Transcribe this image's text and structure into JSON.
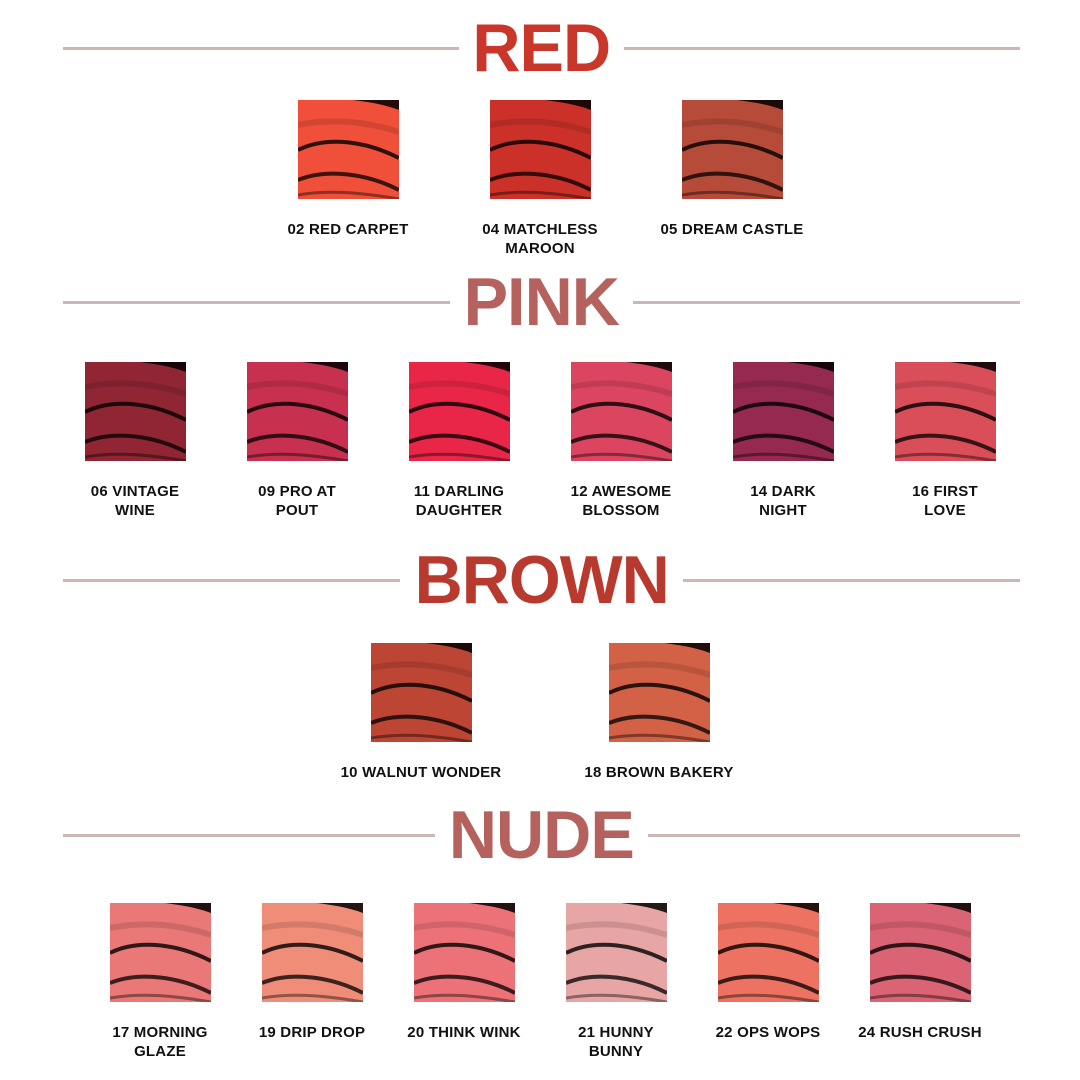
{
  "sections": [
    {
      "title": "RED",
      "color": "#c8372a",
      "items": [
        {
          "label": "02 RED CARPET",
          "color": "#f0452e"
        },
        {
          "label": "04 MATCHLESS\nMAROON",
          "color": "#c8251c"
        },
        {
          "label": "05 DREAM CASTLE",
          "color": "#b3402e"
        }
      ]
    },
    {
      "title": "PINK",
      "color": "#b5625e",
      "items": [
        {
          "label": "06 VINTAGE\nWINE",
          "color": "#8a1828"
        },
        {
          "label": "09 PRO AT\nPOUT",
          "color": "#c42445"
        },
        {
          "label": "11 DARLING\nDAUGHTER",
          "color": "#e8193d"
        },
        {
          "label": "12 AWESOME\nBLOSSOM",
          "color": "#d93a55"
        },
        {
          "label": "14 DARK\nNIGHT",
          "color": "#8f1c45"
        },
        {
          "label": "16 FIRST\nLOVE",
          "color": "#d8434f"
        }
      ]
    },
    {
      "title": "BROWN",
      "color": "#b83a2e",
      "items": [
        {
          "label": "10 WALNUT WONDER",
          "color": "#b83a28"
        },
        {
          "label": "18 BROWN BAKERY",
          "color": "#d0583a"
        }
      ]
    },
    {
      "title": "NUDE",
      "color": "#b5625e",
      "items": [
        {
          "label": "17 MORNING\nGLAZE",
          "color": "#e8706e"
        },
        {
          "label": "19 DRIP DROP",
          "color": "#ee8670"
        },
        {
          "label": "20 THINK WINK",
          "color": "#ec6a70"
        },
        {
          "label": "21 HUNNY\nBUNNY",
          "color": "#e6a0a0"
        },
        {
          "label": "22 OPS WOPS",
          "color": "#ec6a58"
        },
        {
          "label": "24 RUSH CRUSH",
          "color": "#d85a6c"
        }
      ]
    }
  ]
}
